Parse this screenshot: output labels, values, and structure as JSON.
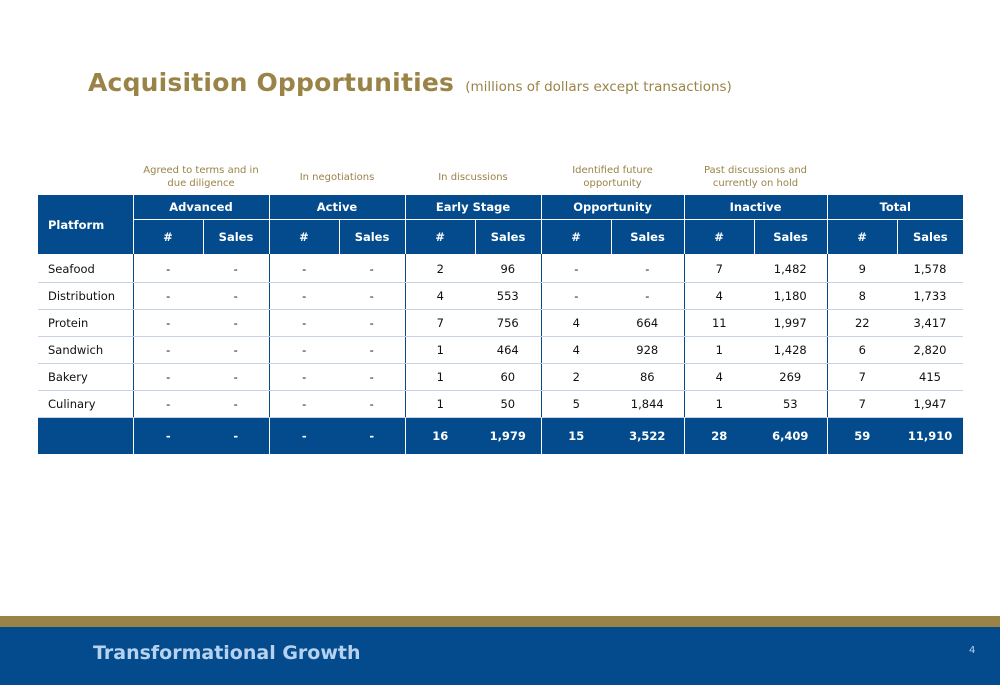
{
  "title": {
    "main": "Acquisition Opportunities",
    "sub": "(millions of dollars except transactions)"
  },
  "stage_notes": [
    "Agreed to terms and in due diligence",
    "In negotiations",
    "In discussions",
    "Identified future opportunity",
    "Past discussions and currently on hold"
  ],
  "table": {
    "platform_header": "Platform",
    "groups": [
      "Advanced",
      "Active",
      "Early Stage",
      "Opportunity",
      "Inactive",
      "Total"
    ],
    "sub_count": "#",
    "sub_sales": "Sales",
    "rows": [
      {
        "platform": "Seafood",
        "cells": [
          "-",
          "-",
          "-",
          "-",
          "2",
          "96",
          "-",
          "-",
          "7",
          "1,482",
          "9",
          "1,578"
        ]
      },
      {
        "platform": "Distribution",
        "cells": [
          "-",
          "-",
          "-",
          "-",
          "4",
          "553",
          "-",
          "-",
          "4",
          "1,180",
          "8",
          "1,733"
        ]
      },
      {
        "platform": "Protein",
        "cells": [
          "-",
          "-",
          "-",
          "-",
          "7",
          "756",
          "4",
          "664",
          "11",
          "1,997",
          "22",
          "3,417"
        ]
      },
      {
        "platform": "Sandwich",
        "cells": [
          "-",
          "-",
          "-",
          "-",
          "1",
          "464",
          "4",
          "928",
          "1",
          "1,428",
          "6",
          "2,820"
        ]
      },
      {
        "platform": "Bakery",
        "cells": [
          "-",
          "-",
          "-",
          "-",
          "1",
          "60",
          "2",
          "86",
          "4",
          "269",
          "7",
          "415"
        ]
      },
      {
        "platform": "Culinary",
        "cells": [
          "-",
          "-",
          "-",
          "-",
          "1",
          "50",
          "5",
          "1,844",
          "1",
          "53",
          "7",
          "1,947"
        ]
      }
    ],
    "total": {
      "platform": "",
      "cells": [
        "-",
        "-",
        "-",
        "-",
        "16",
        "1,979",
        "15",
        "3,522",
        "28",
        "6,409",
        "59",
        "11,910"
      ]
    }
  },
  "footer": {
    "title": "Transformational Growth",
    "page": "4"
  },
  "colors": {
    "navy": "#034b8c",
    "gold": "#9a8347",
    "footer_text": "#b6d2f0"
  }
}
